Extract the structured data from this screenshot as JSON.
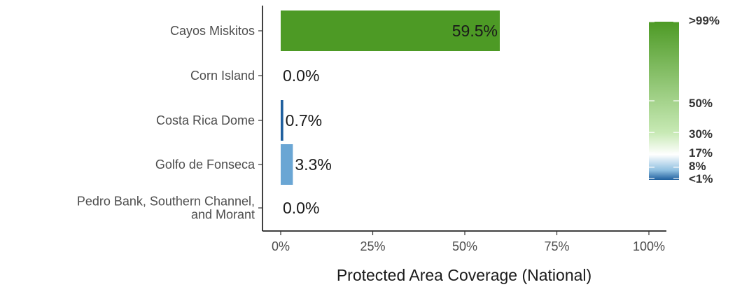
{
  "chart_data": {
    "type": "bar",
    "orientation": "horizontal",
    "categories": [
      "Cayos Miskitos",
      "Corn Island",
      "Costa Rica Dome",
      "Golfo de Fonseca",
      "Pedro Bank, Southern Channel, and Morant"
    ],
    "category_lines": [
      [
        "Cayos Miskitos"
      ],
      [
        "Corn Island"
      ],
      [
        "Costa Rica Dome"
      ],
      [
        "Golfo de Fonseca"
      ],
      [
        "Pedro Bank, Southern Channel,",
        "and Morant"
      ]
    ],
    "values": [
      59.5,
      0.0,
      0.7,
      3.3,
      0.0
    ],
    "value_labels": [
      "59.5%",
      "0.0%",
      "0.7%",
      "3.3%",
      "0.0%"
    ],
    "bar_colors": [
      "#4d9a25",
      "#ffffff",
      "#1f5f9e",
      "#6aa6d4",
      "#ffffff"
    ],
    "xlabel": "Protected Area Coverage (National)",
    "xlim": [
      0,
      100
    ],
    "xticks": [
      0,
      25,
      50,
      75,
      100
    ],
    "xtick_labels": [
      "0%",
      "25%",
      "50%",
      "75%",
      "100%"
    ],
    "grid": false,
    "legend": {
      "placement": "right",
      "type": "colorbar",
      "labels": [
        ">99%",
        "50%",
        "30%",
        "17%",
        "8%",
        "<1%"
      ],
      "label_values": [
        100,
        50,
        30,
        17,
        8,
        1
      ],
      "colors": {
        "low": "#1f5f9e",
        "mid_low": "#8fbfe0",
        "mid": "#ffffff",
        "mid_high": "#c7e9b4",
        "high": "#4d9a25"
      }
    }
  }
}
